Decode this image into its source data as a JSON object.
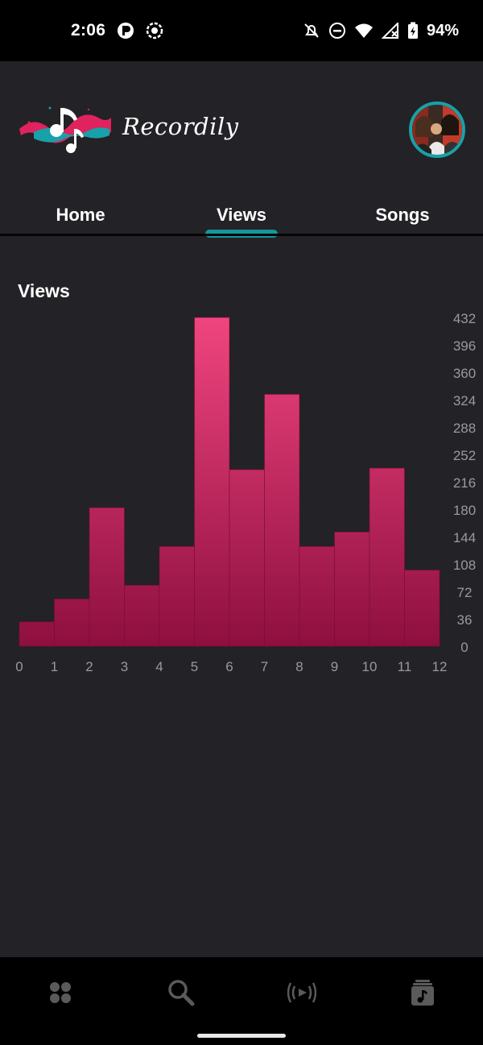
{
  "status_bar": {
    "time": "2:06",
    "battery": "94%"
  },
  "header": {
    "app_name": "Recordily"
  },
  "tabs": [
    {
      "label": "Home",
      "active": false
    },
    {
      "label": "Views",
      "active": true
    },
    {
      "label": "Songs",
      "active": false
    }
  ],
  "section": {
    "title": "Views"
  },
  "chart_data": {
    "type": "bar",
    "x_ticks": [
      "0",
      "1",
      "2",
      "3",
      "4",
      "5",
      "6",
      "7",
      "8",
      "9",
      "10",
      "11",
      "12"
    ],
    "y_ticks": [
      "0",
      "36",
      "72",
      "108",
      "144",
      "180",
      "216",
      "252",
      "288",
      "324",
      "360",
      "396",
      "432"
    ],
    "bins": [
      {
        "x0": 0,
        "x1": 1,
        "value": 32
      },
      {
        "x0": 1,
        "x1": 2,
        "value": 62
      },
      {
        "x0": 2,
        "x1": 3,
        "value": 182
      },
      {
        "x0": 3,
        "x1": 4,
        "value": 80
      },
      {
        "x0": 4,
        "x1": 5,
        "value": 131
      },
      {
        "x0": 5,
        "x1": 6,
        "value": 432
      },
      {
        "x0": 6,
        "x1": 7,
        "value": 232
      },
      {
        "x0": 7,
        "x1": 8,
        "value": 331
      },
      {
        "x0": 8,
        "x1": 9,
        "value": 131
      },
      {
        "x0": 9,
        "x1": 10,
        "value": 150
      },
      {
        "x0": 10,
        "x1": 11,
        "value": 234
      },
      {
        "x0": 11,
        "x1": 12,
        "value": 100
      }
    ],
    "xlim": [
      0,
      12
    ],
    "ylim": [
      0,
      432
    ],
    "y_axis_side": "right",
    "colors": {
      "bar_top": "#f0457f",
      "bar_bottom": "#8e0f3f",
      "tick_label": "#9a9a9a"
    }
  },
  "bottom_nav": [
    {
      "icon": "dashboard-icon"
    },
    {
      "icon": "search-icon"
    },
    {
      "icon": "broadcast-icon"
    },
    {
      "icon": "music-library-icon"
    }
  ]
}
